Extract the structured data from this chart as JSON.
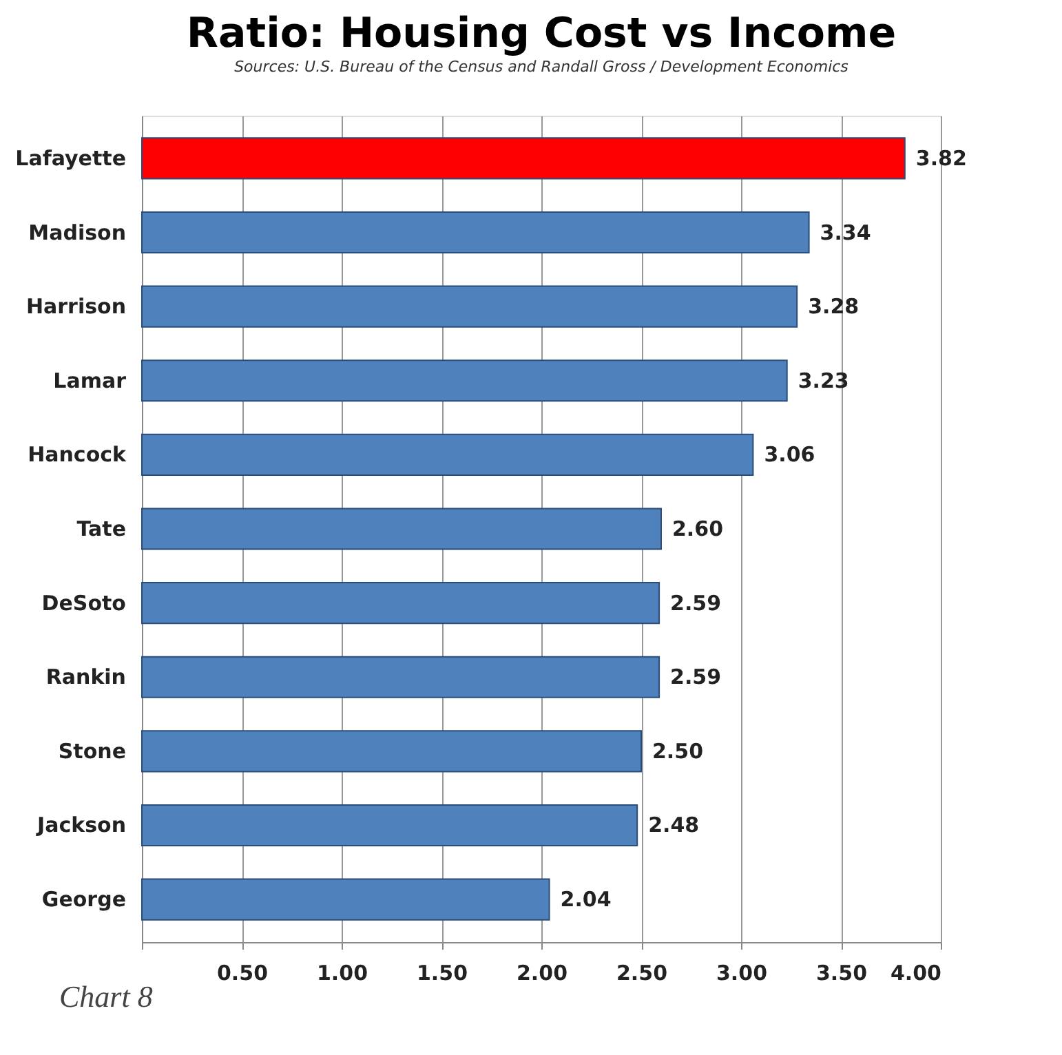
{
  "chart_data": {
    "type": "bar",
    "orientation": "horizontal",
    "title": "Ratio: Housing Cost vs Income",
    "subtitle": "Sources: U.S. Bureau of the Census and Randall Gross / Development Economics",
    "categories": [
      "Lafayette",
      "Madison",
      "Harrison",
      "Lamar",
      "Hancock",
      "Tate",
      "DeSoto",
      "Rankin",
      "Stone",
      "Jackson",
      "George"
    ],
    "values": [
      3.82,
      3.34,
      3.28,
      3.23,
      3.06,
      2.6,
      2.59,
      2.59,
      2.5,
      2.48,
      2.04
    ],
    "value_labels": [
      "3.82",
      "3.34",
      "3.28",
      "3.23",
      "3.06",
      "2.60",
      "2.59",
      "2.59",
      "2.50",
      "2.48",
      "2.04"
    ],
    "colors": [
      "#ff0000",
      "#4f81bd",
      "#4f81bd",
      "#4f81bd",
      "#4f81bd",
      "#4f81bd",
      "#4f81bd",
      "#4f81bd",
      "#4f81bd",
      "#4f81bd",
      "#4f81bd"
    ],
    "xlim": [
      0,
      4
    ],
    "xticks": [
      {
        "value": 0,
        "label": null
      },
      {
        "value": 0.5,
        "label": "0.50"
      },
      {
        "value": 1,
        "label": "1.00"
      },
      {
        "value": 1.5,
        "label": "1.50"
      },
      {
        "value": 2,
        "label": "2.00"
      },
      {
        "value": 2.5,
        "label": "2.50"
      },
      {
        "value": 3,
        "label": "3.00"
      },
      {
        "value": 3.5,
        "label": "3.50"
      },
      {
        "value": 4,
        "label": "4.00"
      }
    ],
    "grid": "x",
    "annotations": [
      "Chart 8"
    ]
  }
}
